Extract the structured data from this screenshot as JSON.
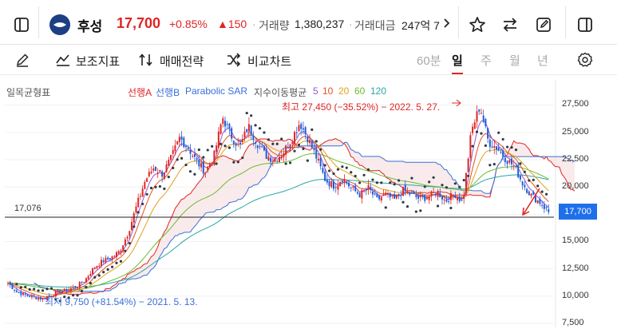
{
  "stock": {
    "name": "후성",
    "price": "17,700",
    "change_pct": "+0.85%",
    "change_abs": "▲150",
    "volume_label": "거래량",
    "volume": "1,380,237",
    "amount_label": "거래대금",
    "amount": "247억 7"
  },
  "toolbar": {
    "indicators": "보조지표",
    "strategy": "매매전략",
    "compare": "비교차트",
    "periods": [
      "60분",
      "일",
      "주",
      "월",
      "년"
    ],
    "active_period": "일"
  },
  "icons": {
    "sidebar_left": "panel-left-icon",
    "star": "star-icon",
    "swap": "swap-arrows-icon",
    "edit": "edit-square-icon",
    "sidebar_right": "panel-right-icon",
    "draw": "pencil-icon",
    "indicator": "line-chart-icon",
    "strategy": "arrows-updown-icon",
    "compare": "shuffle-icon",
    "settings": "gear-icon",
    "next": "chevron-right-icon"
  },
  "legend": {
    "ichimoku": "일목균형표",
    "span_a": "선행A",
    "span_b": "선행B",
    "psar": "Parabolic SAR",
    "ema_title": "지수이동평균",
    "ema": [
      "5",
      "10",
      "20",
      "60",
      "120"
    ]
  },
  "annotations": {
    "high": "최고 27,450 (−35.52%) − 2022. 5. 27.",
    "low": "최저 9,750 (+81.54%) − 2021. 5. 13.",
    "level": "17,076",
    "current": "17,700"
  },
  "colors": {
    "up": "#e02424",
    "down": "#1f5bd8",
    "span_a": "#e02424",
    "span_b": "#3a6fd8",
    "ema5": "#9a55c9",
    "ema10": "#e0541a",
    "ema20": "#e0a21a",
    "ema60": "#6dbb2e",
    "ema120": "#2aa6a6"
  },
  "chart_data": {
    "type": "candlestick",
    "y_ticks": [
      "27,500",
      "25,000",
      "22,500",
      "20,000",
      "17,500",
      "15,000",
      "12,500",
      "10,000",
      "7,500"
    ],
    "ylim": [
      7500,
      28500
    ],
    "series": [
      {
        "name": "선행A",
        "values": []
      },
      {
        "name": "선행B",
        "values": []
      },
      {
        "name": "Parabolic SAR",
        "values": []
      }
    ],
    "price_path": [
      11200,
      10400,
      10100,
      9900,
      9750,
      10100,
      10400,
      10600,
      10900,
      11500,
      12600,
      13200,
      13500,
      14100,
      15800,
      18300,
      20600,
      21800,
      21200,
      22600,
      24500,
      23600,
      22300,
      21400,
      22800,
      26400,
      24700,
      23600,
      25600,
      24100,
      22900,
      22500,
      23100,
      24300,
      25900,
      24400,
      22600,
      20600,
      20100,
      20800,
      19900,
      19300,
      19900,
      18800,
      19300,
      18800,
      19700,
      19300,
      18900,
      19100,
      19600,
      18700,
      19400,
      18600,
      25100,
      27450,
      24100,
      23600,
      22600,
      21900,
      20300,
      19200,
      18600,
      17700
    ]
  }
}
